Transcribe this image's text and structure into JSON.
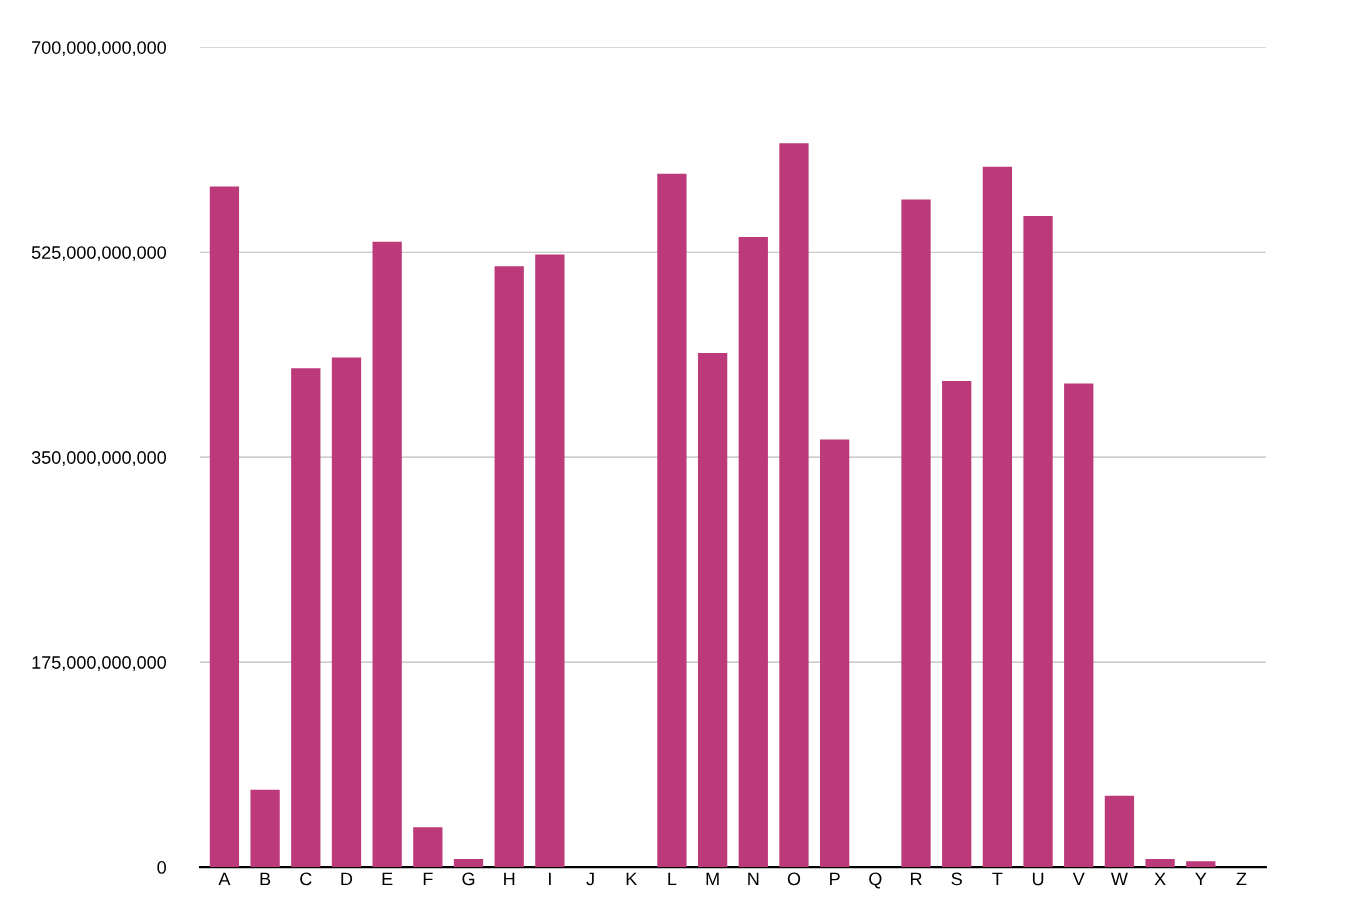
{
  "chart_data": {
    "type": "bar",
    "categories": [
      "A",
      "B",
      "C",
      "D",
      "E",
      "F",
      "G",
      "H",
      "I",
      "J",
      "K",
      "L",
      "M",
      "N",
      "O",
      "P",
      "Q",
      "R",
      "S",
      "T",
      "U",
      "V",
      "W",
      "X",
      "Y",
      "Z"
    ],
    "values": [
      581000000000.0,
      66000000000.0,
      426000000000.0,
      435000000000.0,
      534000000000.0,
      34000000000.0,
      7000000000.0,
      513000000000.0,
      523000000000.0,
      0,
      0,
      592000000000.0,
      439000000000.0,
      538000000000.0,
      618000000000.0,
      365000000000.0,
      0,
      570000000000.0,
      415000000000.0,
      598000000000.0,
      556000000000.0,
      413000000000.0,
      61000000000.0,
      7000000000.0,
      5000000000.0,
      0
    ],
    "color": "#bc3a7a",
    "ylim": [
      0,
      700000000000.0
    ],
    "yticks": [
      {
        "value": 0,
        "label": "0"
      },
      {
        "value": 175000000000.0,
        "label": "175,000,000,000"
      },
      {
        "value": 350000000000.0,
        "label": "350,000,000,000"
      },
      {
        "value": 525000000000.0,
        "label": "525,000,000,000"
      },
      {
        "value": 700000000000.0,
        "label": "700,000,000,000"
      }
    ],
    "grid": "y",
    "legend": false
  }
}
